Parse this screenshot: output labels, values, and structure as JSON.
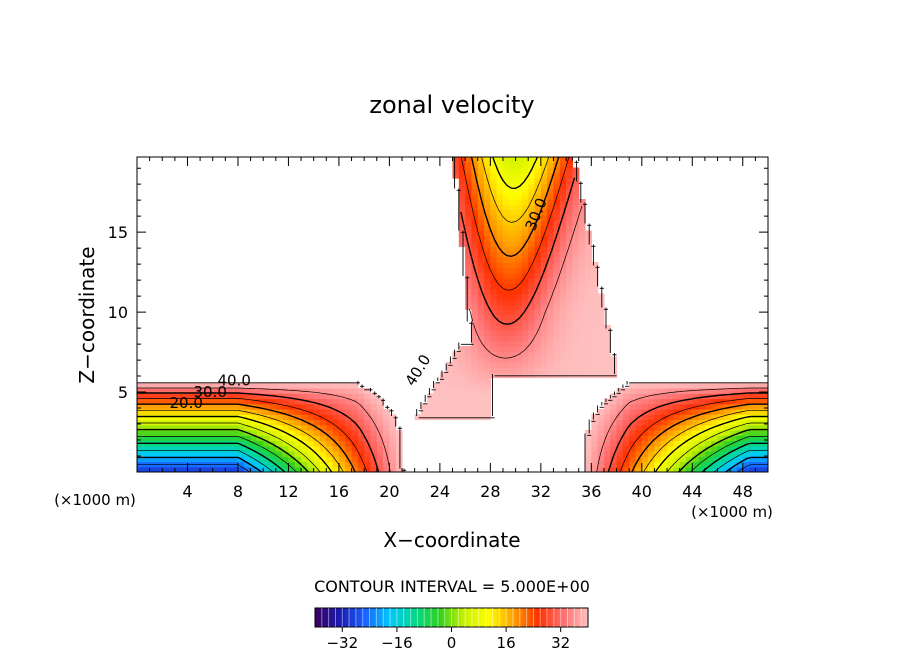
{
  "chart_data": {
    "type": "heatmap",
    "title": "zonal velocity",
    "xlabel": "X−coordinate",
    "ylabel": "Z−coordinate",
    "x_unit_left": "(×1000 m)",
    "x_unit_right": "(×1000 m)",
    "xlim": [
      0,
      50
    ],
    "ylim": [
      0,
      19.7
    ],
    "x_ticks": [
      4,
      8,
      12,
      16,
      20,
      24,
      28,
      32,
      36,
      40,
      44,
      48
    ],
    "y_ticks": [
      5,
      10,
      15
    ],
    "contour_interval_text": "CONTOUR INTERVAL = 5.000E+00",
    "contour_labels": [
      {
        "text": "40.0",
        "x": 7.7,
        "y": 5.4
      },
      {
        "text": "30.0",
        "x": 5.8,
        "y": 4.7
      },
      {
        "text": "20.0",
        "x": 3.9,
        "y": 4.0
      },
      {
        "text": "40.0",
        "x": 22.6,
        "y": 6.2,
        "rotate": -58
      },
      {
        "text": "30.0",
        "x": 32.0,
        "y": 16.0,
        "rotate": -68
      }
    ],
    "colorbar": {
      "ticks": [
        -32,
        -16,
        0,
        16,
        32
      ],
      "tick_labels": [
        "−32",
        "−16",
        "0",
        "16",
        "32"
      ],
      "range": [
        -40,
        40
      ],
      "colors": [
        "#3b0060",
        "#1a1ab0",
        "#1a60ff",
        "#00c8ff",
        "#00d890",
        "#30d020",
        "#c8f000",
        "#ffff00",
        "#ffa000",
        "#ff3000",
        "#ff7070",
        "#ffc0c0"
      ]
    },
    "regions": [
      {
        "name": "left-lower-jet",
        "min_value": -30,
        "max_value": 40,
        "extent_x": [
          0,
          21
        ],
        "extent_z": [
          0,
          5.5
        ]
      },
      {
        "name": "right-lower-jet",
        "min_value": -25,
        "max_value": 40,
        "extent_x": [
          35.5,
          50
        ],
        "extent_z": [
          0,
          5.5
        ]
      },
      {
        "name": "upper-jet",
        "min_value": 5,
        "max_value": 40,
        "extent_x": [
          21,
          35
        ],
        "extent_z": [
          3.5,
          19.7
        ]
      }
    ]
  }
}
